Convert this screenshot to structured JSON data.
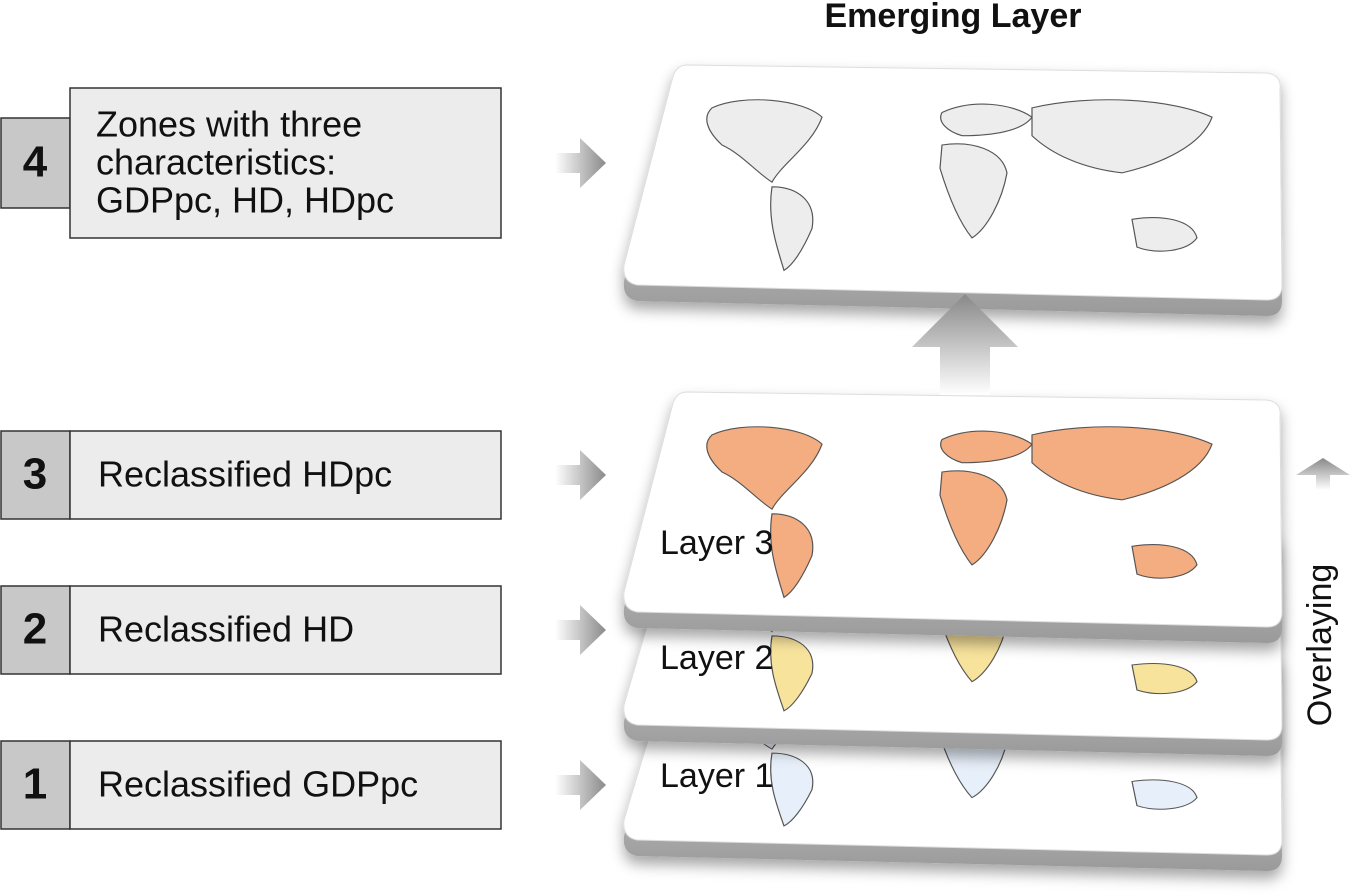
{
  "title": "Emerging Layer",
  "steps": [
    {
      "number": "4",
      "lines": [
        "Zones with three",
        "characteristics:",
        "GDPpc, HD, HDpc"
      ]
    },
    {
      "number": "3",
      "lines": [
        "Reclassified HDpc"
      ]
    },
    {
      "number": "2",
      "lines": [
        "Reclassified HD"
      ]
    },
    {
      "number": "1",
      "lines": [
        "Reclassified GDPpc"
      ]
    }
  ],
  "layers": [
    "Layer 3",
    "Layer 2",
    "Layer 1"
  ],
  "side_label": "Overlaying"
}
